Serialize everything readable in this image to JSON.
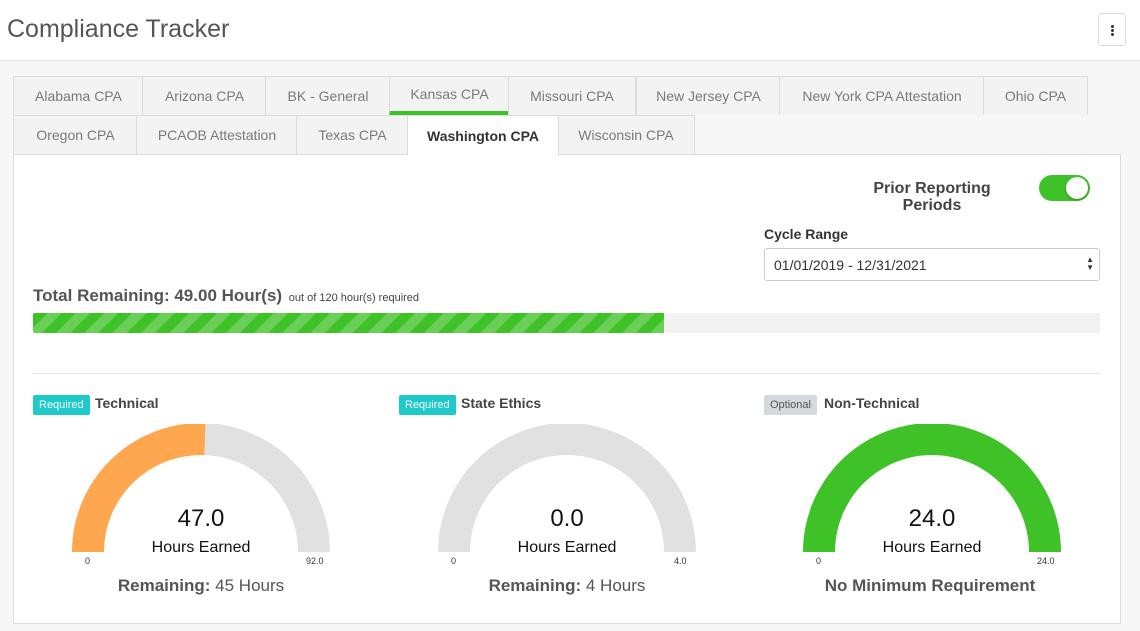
{
  "header": {
    "title": "Compliance Tracker",
    "menu_icon": "vertical-ellipsis-icon"
  },
  "tabs": [
    {
      "label": "Alabama CPA"
    },
    {
      "label": "Arizona CPA"
    },
    {
      "label": "BK - General"
    },
    {
      "label": "Kansas CPA"
    },
    {
      "label": "Missouri CPA"
    },
    {
      "label": "New Jersey CPA"
    },
    {
      "label": "New York CPA Attestation"
    },
    {
      "label": "Ohio CPA"
    },
    {
      "label": "Oregon CPA"
    },
    {
      "label": "PCAOB Attestation"
    },
    {
      "label": "Texas CPA"
    },
    {
      "label": "Washington CPA"
    },
    {
      "label": "Wisconsin CPA"
    }
  ],
  "active_tab": "Washington CPA",
  "controls": {
    "prior_reporting_label": "Prior Reporting Periods",
    "prior_reporting_on": true,
    "cycle_range_label": "Cycle Range",
    "cycle_range_value": "01/01/2019 - 12/31/2021"
  },
  "summary": {
    "total_label": "Total Remaining: 49.00 Hour(s)",
    "total_sub": "out of 120 hour(s) required",
    "progress_fraction": 0.5917
  },
  "categories": [
    {
      "badge": "Required",
      "title": "Technical",
      "earned": "47.0",
      "earned_label": "Hours Earned",
      "min": "0",
      "max": "92.0",
      "fraction": 0.511,
      "remaining_label": "Remaining:",
      "remaining_value": "45 Hours"
    },
    {
      "badge": "Required",
      "title": "State Ethics",
      "earned": "0.0",
      "earned_label": "Hours Earned",
      "min": "0",
      "max": "4.0",
      "fraction": 0,
      "remaining_label": "Remaining:",
      "remaining_value": "4 Hours"
    },
    {
      "badge": "Optional",
      "title": "Non-Technical",
      "earned": "24.0",
      "earned_label": "Hours Earned",
      "min": "0",
      "max": "24.0",
      "fraction": 1,
      "remaining_label": "No Minimum Requirement",
      "remaining_value": ""
    }
  ],
  "colors": {
    "accent_green": "#3fc227",
    "gauge_orange": "#ffa74f",
    "gauge_gray": "#e1e1e1",
    "badge_required": "#1ec9c9",
    "badge_optional": "#d4d9dd"
  }
}
